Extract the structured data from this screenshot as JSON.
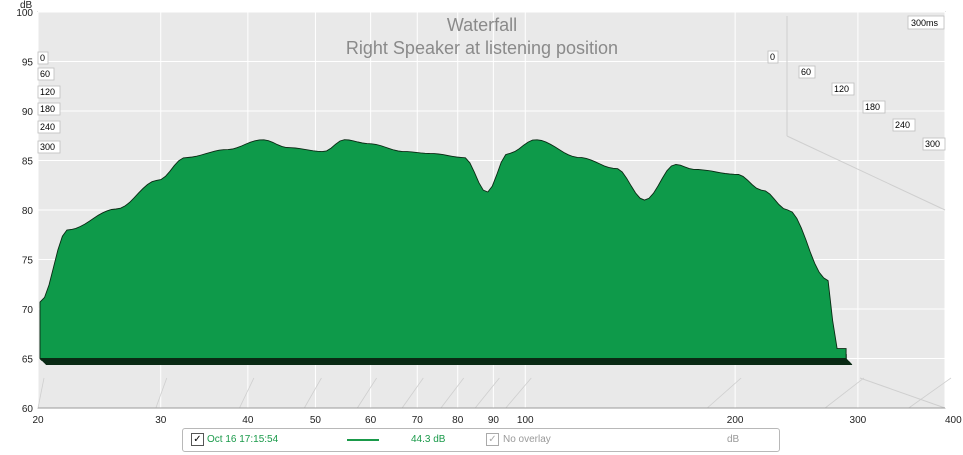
{
  "chart_data": {
    "type": "area",
    "subtype": "waterfall-3d",
    "title": "Waterfall",
    "subtitle": "Right Speaker at listening position",
    "yunit": "dB",
    "ylim": [
      60,
      100
    ],
    "yticks": [
      60,
      65,
      70,
      75,
      80,
      85,
      90,
      95,
      100
    ],
    "xunit": "Hz",
    "xscale": "log",
    "xlim": [
      20,
      400
    ],
    "xticks": [
      20,
      30,
      40,
      50,
      60,
      70,
      80,
      90,
      100,
      200,
      300,
      400
    ],
    "xtick_labels": [
      "20",
      "30",
      "40",
      "50",
      "60",
      "70",
      "80",
      "90",
      "100",
      "200",
      "300",
      "400 Hz"
    ],
    "time_unit": "ms",
    "time_ticks": [
      0,
      60,
      120,
      180,
      240,
      300
    ],
    "time_tick_labels_left": [
      "0",
      "60",
      "120",
      "180",
      "240",
      "300"
    ],
    "time_tick_labels_right": [
      "0",
      "60",
      "120",
      "180",
      "240",
      "300"
    ],
    "time_corner_label": "300ms",
    "slice_count": 30,
    "fill_color": "#0e9a4a",
    "line_color": "#0a2a14",
    "grid": true,
    "front_slice_peaks": [
      {
        "freq": 20,
        "db": 70.7
      },
      {
        "freq": 22,
        "db": 78.0
      },
      {
        "freq": 26,
        "db": 80.1
      },
      {
        "freq": 30,
        "db": 83.0
      },
      {
        "freq": 33,
        "db": 85.3
      },
      {
        "freq": 38,
        "db": 86.1
      },
      {
        "freq": 43,
        "db": 87.1
      },
      {
        "freq": 47,
        "db": 86.3
      },
      {
        "freq": 53,
        "db": 85.9
      },
      {
        "freq": 57,
        "db": 87.1
      },
      {
        "freq": 62,
        "db": 86.7
      },
      {
        "freq": 70,
        "db": 85.9
      },
      {
        "freq": 77,
        "db": 85.7
      },
      {
        "freq": 86,
        "db": 85.3
      },
      {
        "freq": 93,
        "db": 81.8
      },
      {
        "freq": 100,
        "db": 85.7
      },
      {
        "freq": 110,
        "db": 87.1
      },
      {
        "freq": 128,
        "db": 85.3
      },
      {
        "freq": 145,
        "db": 84.2
      },
      {
        "freq": 160,
        "db": 81.0
      },
      {
        "freq": 178,
        "db": 84.6
      },
      {
        "freq": 190,
        "db": 84.1
      },
      {
        "freq": 220,
        "db": 83.6
      },
      {
        "freq": 240,
        "db": 82.0
      },
      {
        "freq": 262,
        "db": 80.0
      },
      {
        "freq": 300,
        "db": 73.0
      },
      {
        "freq": 310,
        "db": 66.0
      }
    ],
    "floor_db": 65
  },
  "legend": {
    "check1": "✓",
    "date": "Oct 16 17:15:54",
    "level": "44.3 dB",
    "check2": "✓",
    "overlay": "No overlay",
    "unit": "dB",
    "series_color": "#1a9a4a"
  }
}
